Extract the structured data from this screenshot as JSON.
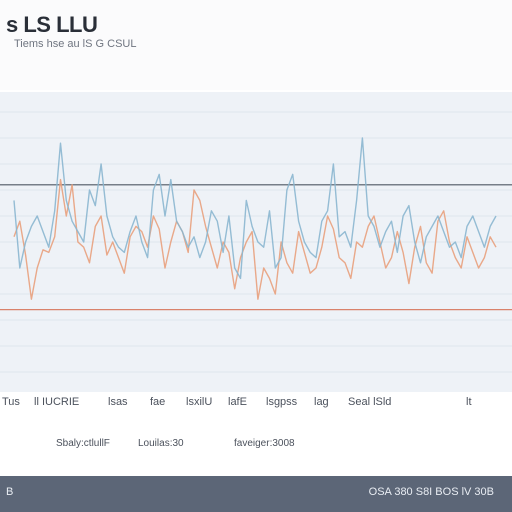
{
  "header": {
    "title": "s LS LLU",
    "subtitle": "Tiems hse au lS G CSUL"
  },
  "chart_data": {
    "type": "line",
    "title": "s LS LLU",
    "subtitle": "Tiems hse au lS G CSUL",
    "xlabel": "",
    "ylabel": "",
    "ylim": [
      0,
      100
    ],
    "grid": true,
    "upper_threshold": 72,
    "lower_threshold": 24,
    "x_tick_labels": [
      "Tus",
      "ll IUCRIE",
      "lsas",
      "fae",
      "lsxilU",
      "lafE",
      "lsgpss",
      "lag",
      "Seal lSld",
      "lt"
    ],
    "legend": [
      "Sbaly:ctlullF",
      "Louilas:30",
      "faveiger:3008"
    ],
    "series": [
      {
        "name": "",
        "color": "#e8a07c",
        "values": [
          52,
          58,
          45,
          28,
          40,
          47,
          46,
          52,
          74,
          60,
          72,
          50,
          48,
          42,
          56,
          60,
          45,
          50,
          44,
          38,
          52,
          56,
          54,
          48,
          60,
          55,
          40,
          50,
          58,
          54,
          46,
          70,
          66,
          56,
          48,
          40,
          50,
          46,
          32,
          44,
          50,
          54,
          28,
          40,
          36,
          30,
          50,
          42,
          38,
          54,
          46,
          38,
          40,
          48,
          60,
          55,
          44,
          42,
          36,
          50,
          48,
          56,
          60,
          50,
          40,
          44,
          54,
          46,
          34,
          48,
          56,
          42,
          38,
          58,
          62,
          50,
          44,
          40,
          52,
          46,
          40,
          44,
          52,
          48
        ]
      },
      {
        "name": "",
        "color": "#8ab6cf",
        "values": [
          66,
          40,
          50,
          56,
          60,
          54,
          48,
          62,
          88,
          66,
          58,
          54,
          50,
          70,
          64,
          80,
          60,
          52,
          48,
          46,
          54,
          60,
          50,
          44,
          70,
          76,
          60,
          74,
          58,
          54,
          48,
          52,
          44,
          50,
          62,
          58,
          46,
          60,
          40,
          36,
          66,
          56,
          50,
          48,
          62,
          40,
          44,
          70,
          76,
          58,
          50,
          46,
          44,
          58,
          62,
          80,
          52,
          54,
          48,
          66,
          90,
          60,
          56,
          48,
          54,
          58,
          46,
          60,
          64,
          50,
          42,
          52,
          56,
          60,
          54,
          48,
          50,
          44,
          56,
          60,
          54,
          48,
          56,
          60
        ]
      }
    ]
  },
  "statusbar": {
    "left": "B",
    "right": "OSA 380 S8I BOS lV 30B"
  },
  "colors": {
    "plot_bg": "#eef2f7",
    "threshold_upper": "#4e5863",
    "threshold_lower": "#d9826b",
    "statusbar_bg": "#5c6677"
  }
}
